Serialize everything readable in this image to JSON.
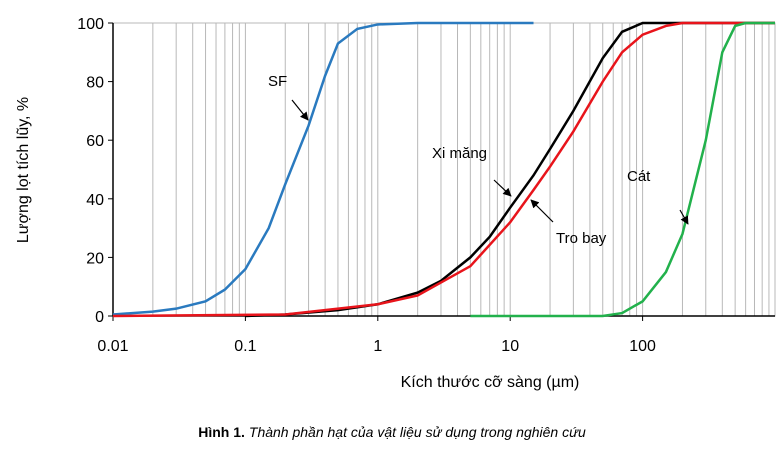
{
  "chart_data": {
    "type": "line",
    "xlabel": "Kích thước cỡ sàng (µm)",
    "ylabel": "Lượng lọt tích lũy, %",
    "caption_label": "Hình 1.",
    "caption_text": "Thành phần hạt của vật liệu sử dụng trong nghiên cứu",
    "xscale": "log",
    "xlim": [
      0.01,
      1000
    ],
    "xticks": [
      0.01,
      0.1,
      1,
      10,
      100
    ],
    "ylim": [
      0,
      100
    ],
    "yticks": [
      0,
      20,
      40,
      60,
      80,
      100
    ],
    "grid": "x-minor",
    "series": [
      {
        "name": "SF",
        "color": "#2a7abf",
        "x": [
          0.01,
          0.02,
          0.03,
          0.05,
          0.07,
          0.1,
          0.15,
          0.2,
          0.3,
          0.4,
          0.5,
          0.7,
          1,
          2,
          15
        ],
        "values": [
          0.5,
          1.5,
          2.5,
          5,
          9,
          16,
          30,
          45,
          65,
          82,
          93,
          98,
          99.5,
          100,
          100
        ]
      },
      {
        "name": "Xi măng",
        "color": "#000000",
        "x": [
          0.1,
          0.2,
          0.5,
          1,
          2,
          3,
          5,
          7,
          10,
          15,
          20,
          30,
          50,
          70,
          100,
          200,
          1000
        ],
        "values": [
          0,
          0.5,
          2,
          4,
          8,
          12,
          20,
          27,
          37,
          48,
          57,
          70,
          88,
          97,
          100,
          100,
          100
        ]
      },
      {
        "name": "Tro bay",
        "color": "#e8141b",
        "x": [
          0.01,
          0.2,
          1,
          2,
          5,
          10,
          15,
          20,
          30,
          50,
          70,
          100,
          150,
          200,
          1000
        ],
        "values": [
          0,
          0.5,
          4,
          7,
          17,
          32,
          43,
          51,
          63,
          80,
          90,
          96,
          99,
          100,
          100
        ]
      },
      {
        "name": "Cát",
        "color": "#22b14c",
        "x": [
          5,
          50,
          70,
          100,
          150,
          200,
          300,
          400,
          500,
          600,
          1000
        ],
        "values": [
          0,
          0,
          1,
          5,
          15,
          28,
          60,
          90,
          99,
          100,
          100
        ]
      }
    ]
  }
}
